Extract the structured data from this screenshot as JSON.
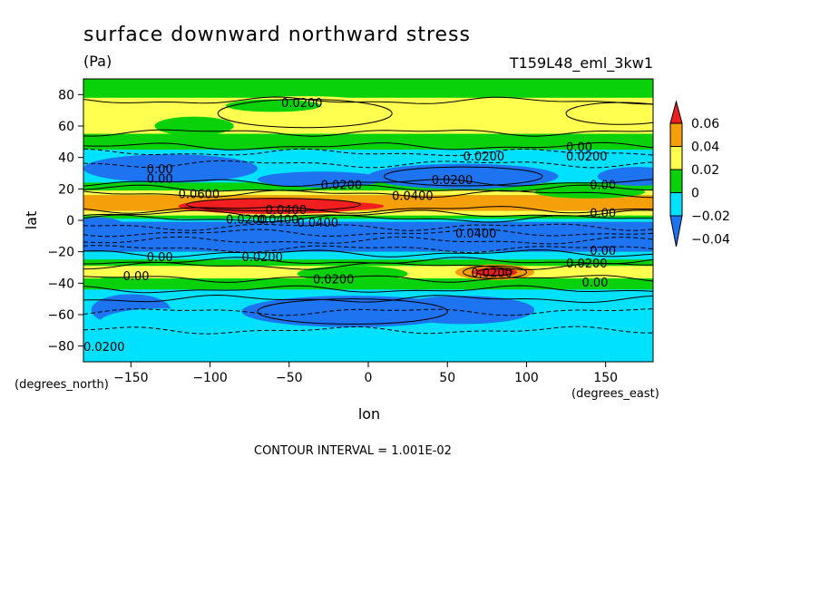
{
  "title": "surface downward northward stress",
  "units": "(Pa)",
  "run_id": "T159L48_eml_3kw1",
  "footer": "CONTOUR INTERVAL = 1.001E-02",
  "chart_data": {
    "type": "heatmap",
    "title": "surface downward northward stress",
    "xlabel": "lon",
    "ylabel": "lat",
    "x_units": "(degrees_east)",
    "y_units": "(degrees_north)",
    "xlim": [
      -180,
      180
    ],
    "ylim": [
      -90,
      90
    ],
    "x_ticks": [
      -150,
      -100,
      -50,
      0,
      50,
      100,
      150
    ],
    "y_ticks": [
      -80,
      -60,
      -40,
      -20,
      0,
      20,
      40,
      60,
      80
    ],
    "contour_interval": 0.01001,
    "colorbar": {
      "levels": [
        -0.04,
        -0.02,
        0,
        0.02,
        0.04,
        0.06
      ],
      "labels": [
        "-0.04",
        "-0.02",
        "0",
        "0.02",
        "0.04",
        "0.06"
      ],
      "colors": [
        "#1e73f0",
        "#00e1ff",
        "#0ad20a",
        "#ffff4f",
        "#f5a00a",
        "#f01e1e"
      ]
    },
    "contour_labels": [
      "0.0200",
      "0.0200",
      "0.0600",
      "0.0400",
      "0.0400",
      "0.0400",
      "0.0200",
      "0.00",
      "0.00",
      "0.00",
      "0.00",
      "0.00",
      "0.00",
      "0.00",
      "0.00",
      "0.0200",
      "0.0200",
      "0.0200",
      "0.0200",
      "0.0400",
      "0.0400",
      "0.0200",
      "0.0200",
      "0.0200",
      "0.0200",
      "0.00"
    ],
    "field_features": [
      {
        "lat": 12,
        "lon_range": [
          -120,
          50
        ],
        "value": 0.055,
        "label": "0.0600"
      },
      {
        "lat": -33,
        "lon_range": [
          55,
          105
        ],
        "value": 0.065,
        "label": "0.0200"
      },
      {
        "lat": 68,
        "lon_range": [
          -90,
          15
        ],
        "value": 0.03,
        "label": "0.0200"
      },
      {
        "lat": -8,
        "lon_range": [
          -180,
          180
        ],
        "value": -0.045,
        "label": "0.0400"
      },
      {
        "lat": 30,
        "lon_range": [
          -170,
          -90
        ],
        "value": -0.025,
        "label": "0.00"
      },
      {
        "lat": -55,
        "lon_range": [
          -60,
          100
        ],
        "value": -0.025,
        "label": "0.0200"
      }
    ]
  }
}
